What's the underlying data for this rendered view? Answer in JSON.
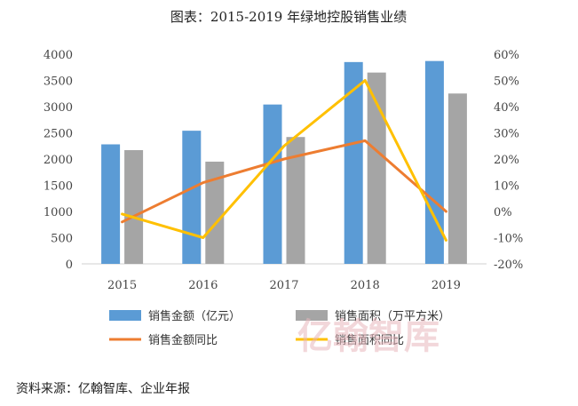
{
  "chart_data": {
    "type": "bar",
    "title": "图表：2015-2019 年绿地控股销售业绩",
    "categories": [
      "2015",
      "2016",
      "2017",
      "2018",
      "2019"
    ],
    "ylim": [
      0,
      4000
    ],
    "y_ticks": [
      "0",
      "500",
      "1000",
      "1500",
      "2000",
      "2500",
      "3000",
      "3500",
      "4000"
    ],
    "y2lim": [
      -20,
      60
    ],
    "y2_ticks": [
      "-20%",
      "-10%",
      "0%",
      "10%",
      "20%",
      "30%",
      "40%",
      "50%",
      "60%"
    ],
    "grid": false,
    "legend_position": "bottom",
    "series": [
      {
        "name": "销售金额（亿元）",
        "kind": "bar",
        "axis": "left",
        "color": "#5b9bd5",
        "values": [
          2280,
          2540,
          3040,
          3850,
          3870
        ]
      },
      {
        "name": "销售面积（万平方米）",
        "kind": "bar",
        "axis": "left",
        "color": "#a5a5a5",
        "values": [
          2170,
          1950,
          2420,
          3650,
          3250
        ]
      },
      {
        "name": "销售金额同比",
        "kind": "line",
        "axis": "right",
        "color": "#ed7d31",
        "values": [
          -4,
          11,
          20,
          27,
          0
        ]
      },
      {
        "name": "销售面积同比",
        "kind": "line",
        "axis": "right",
        "color": "#ffc000",
        "values": [
          -1,
          -10,
          25,
          50,
          -11
        ]
      }
    ]
  },
  "source": "资料来源：亿翰智库、企业年报",
  "watermark": "亿翰智库"
}
